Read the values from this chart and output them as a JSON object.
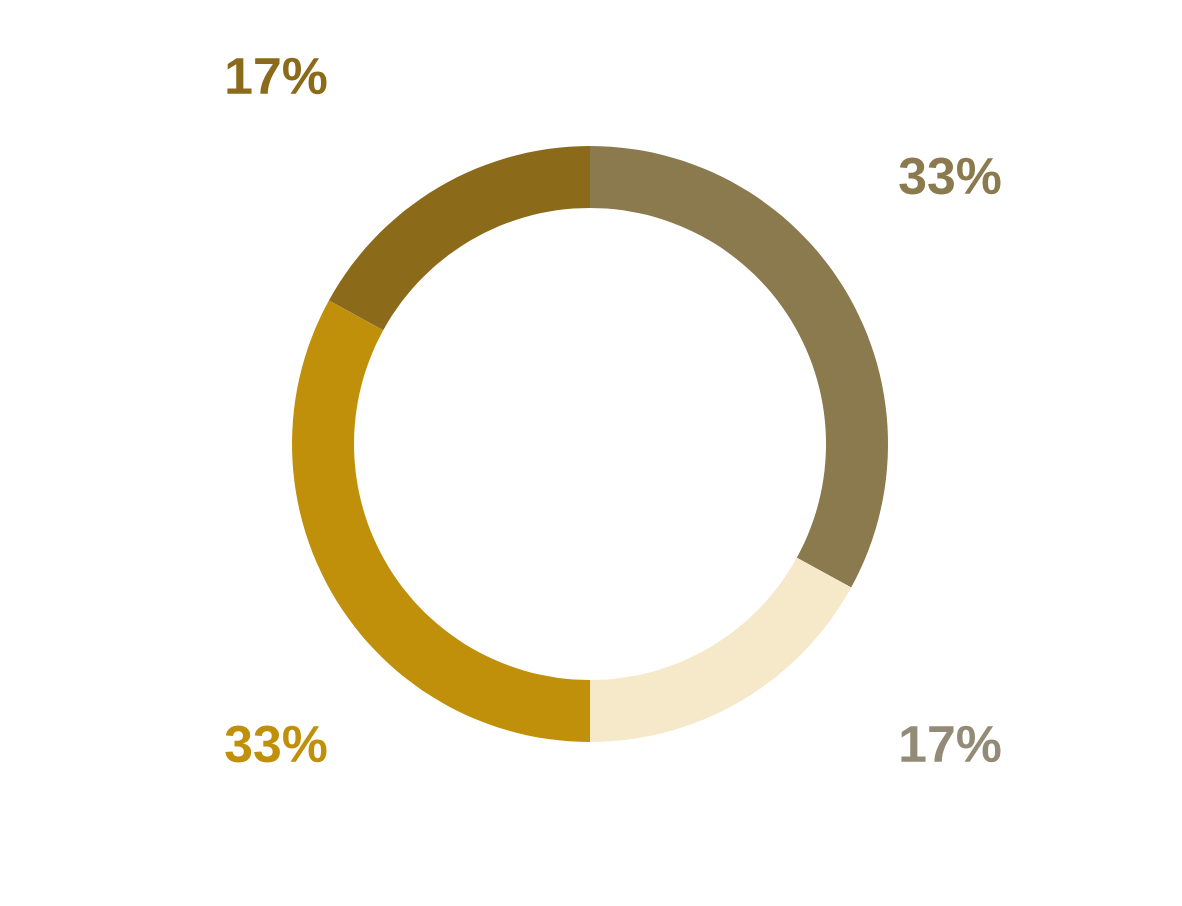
{
  "chart_data": {
    "type": "donut",
    "categories": [
      null,
      null,
      null,
      null
    ],
    "values": [
      33,
      17,
      33,
      17
    ],
    "colors": [
      "#8c7a4f",
      "#f5e9c9",
      "#c0900a",
      "#8b6b1a"
    ],
    "value_labels": [
      "33%",
      "17%",
      "33%",
      "17%"
    ]
  }
}
